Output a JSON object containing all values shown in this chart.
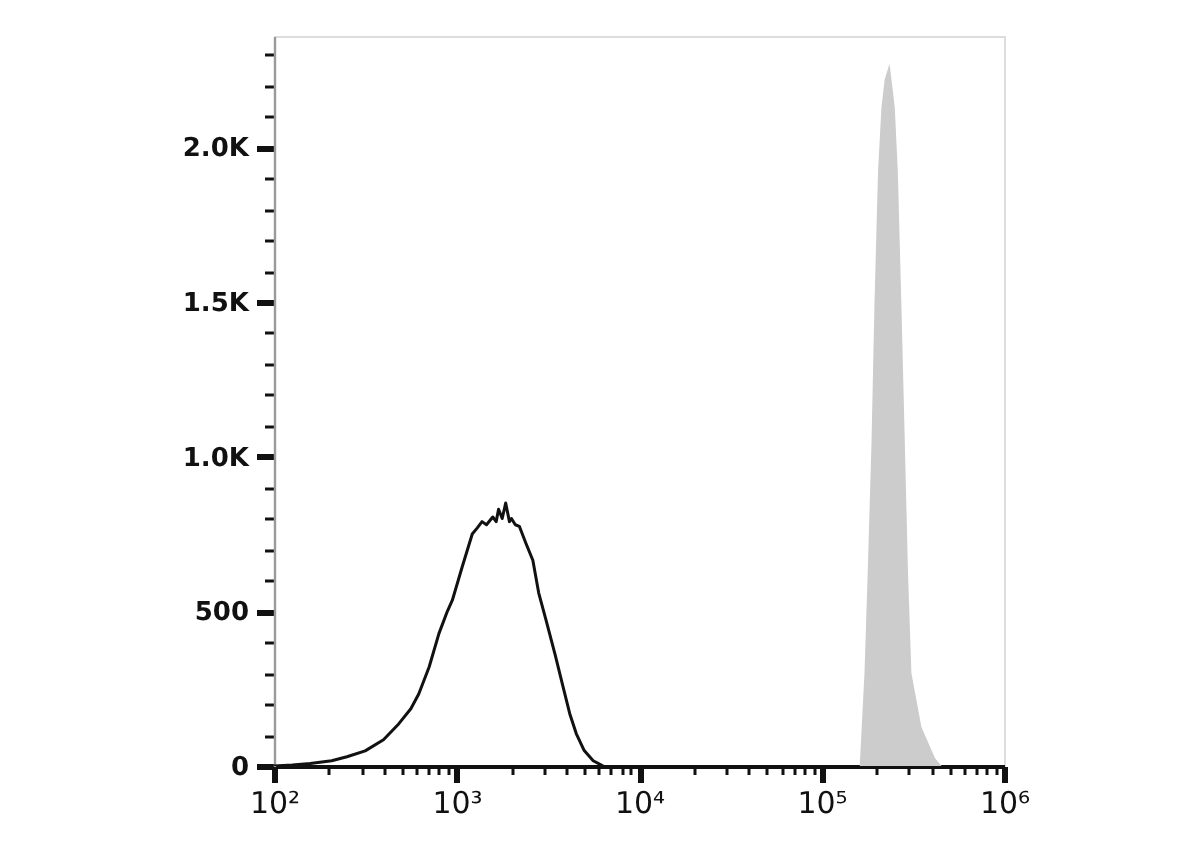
{
  "chart_data": {
    "type": "line",
    "log": "x",
    "xlim": [
      100,
      1000000
    ],
    "ylim": [
      0,
      2360
    ],
    "xticks": [
      {
        "value": 100,
        "label": "10²"
      },
      {
        "value": 200,
        "label": null
      },
      {
        "value": 300,
        "label": null
      },
      {
        "value": 400,
        "label": null
      },
      {
        "value": 500,
        "label": null
      },
      {
        "value": 600,
        "label": null
      },
      {
        "value": 700,
        "label": null
      },
      {
        "value": 800,
        "label": null
      },
      {
        "value": 900,
        "label": null
      },
      {
        "value": 1000,
        "label": "10³"
      },
      {
        "value": 2000,
        "label": null
      },
      {
        "value": 3000,
        "label": null
      },
      {
        "value": 4000,
        "label": null
      },
      {
        "value": 5000,
        "label": null
      },
      {
        "value": 6000,
        "label": null
      },
      {
        "value": 7000,
        "label": null
      },
      {
        "value": 8000,
        "label": null
      },
      {
        "value": 9000,
        "label": null
      },
      {
        "value": 10000,
        "label": "10⁴"
      },
      {
        "value": 20000,
        "label": null
      },
      {
        "value": 30000,
        "label": null
      },
      {
        "value": 40000,
        "label": null
      },
      {
        "value": 50000,
        "label": null
      },
      {
        "value": 60000,
        "label": null
      },
      {
        "value": 70000,
        "label": null
      },
      {
        "value": 80000,
        "label": null
      },
      {
        "value": 90000,
        "label": null
      },
      {
        "value": 100000,
        "label": "10⁵"
      },
      {
        "value": 200000,
        "label": null
      },
      {
        "value": 300000,
        "label": null
      },
      {
        "value": 400000,
        "label": null
      },
      {
        "value": 500000,
        "label": null
      },
      {
        "value": 600000,
        "label": null
      },
      {
        "value": 700000,
        "label": null
      },
      {
        "value": 800000,
        "label": null
      },
      {
        "value": 900000,
        "label": null
      },
      {
        "value": 1000000,
        "label": "10⁶"
      }
    ],
    "yticks": [
      0,
      {
        "value": 100,
        "label": null
      },
      {
        "value": 200,
        "label": null
      },
      {
        "value": 300,
        "label": null
      },
      {
        "value": 400,
        "label": null
      },
      500,
      {
        "value": 600,
        "label": null
      },
      {
        "value": 700,
        "label": null
      },
      {
        "value": 800,
        "label": null
      },
      {
        "value": 900,
        "label": null
      },
      {
        "value": 1000,
        "label": "1.0K"
      },
      {
        "value": 1100,
        "label": null
      },
      {
        "value": 1200,
        "label": null
      },
      {
        "value": 1300,
        "label": null
      },
      {
        "value": 1400,
        "label": null
      },
      {
        "value": 1500,
        "label": "1.5K"
      },
      {
        "value": 1600,
        "label": null
      },
      {
        "value": 1700,
        "label": null
      },
      {
        "value": 1800,
        "label": null
      },
      {
        "value": 1900,
        "label": null
      },
      {
        "value": 2000,
        "label": "2.0K"
      },
      {
        "value": 2100,
        "label": null
      },
      {
        "value": 2200,
        "label": null
      },
      {
        "value": 2300,
        "label": null
      }
    ],
    "series": [
      {
        "color": "#111111",
        "x": [
          100,
          126,
          158,
          207,
          251,
          316,
          398,
          482,
          562,
          621,
          708,
          801,
          891,
          949,
          1070,
          1220,
          1300,
          1380,
          1460,
          1580,
          1650,
          1700,
          1780,
          1860,
          1950,
          2000,
          2100,
          2210,
          2400,
          2620,
          2820,
          3100,
          3470,
          3840,
          4170,
          4530,
          5010,
          5610,
          6360
        ],
        "values": [
          0,
          3,
          8,
          17,
          30,
          49,
          85,
          136,
          185,
          233,
          320,
          428,
          500,
          536,
          640,
          750,
          770,
          790,
          780,
          805,
          790,
          830,
          800,
          850,
          790,
          800,
          780,
          775,
          720,
          665,
          560,
          470,
          360,
          255,
          170,
          105,
          50,
          17,
          0
        ]
      },
      {
        "type": "area",
        "color": "#cccccc",
        "x": [
          162000,
          172000,
          179000,
          188000,
          195000,
          204000,
          213000,
          222000,
          236000,
          252000,
          262000,
          274000,
          286000,
          298000,
          311000,
          353000,
          419000,
          455000
        ],
        "values": [
          0,
          300,
          620,
          1050,
          1490,
          1920,
          2130,
          2220,
          2270,
          2130,
          1920,
          1490,
          1050,
          620,
          300,
          125,
          25,
          0
        ]
      }
    ]
  }
}
